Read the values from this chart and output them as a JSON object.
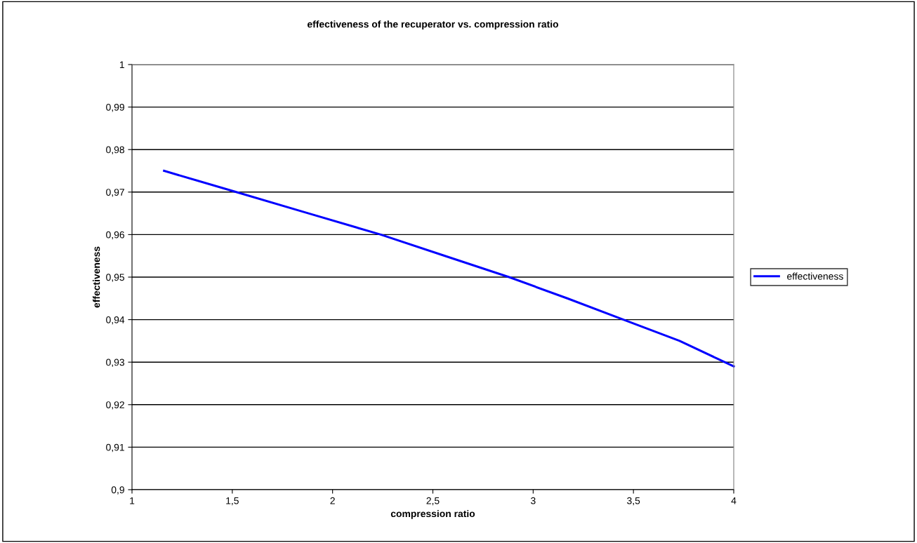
{
  "chart_data": {
    "type": "line",
    "title": "effectiveness of the recuperator vs. compression ratio",
    "xlabel": "compression ratio",
    "ylabel": "effectiveness",
    "x": [
      1.16,
      1.52,
      1.88,
      2.24,
      2.56,
      2.88,
      3.17,
      3.45,
      3.73,
      4.0
    ],
    "series": [
      {
        "name": "effectiveness",
        "color": "#0000ff",
        "values": [
          0.975,
          0.97,
          0.965,
          0.96,
          0.955,
          0.95,
          0.945,
          0.94,
          0.935,
          0.929
        ]
      }
    ],
    "xlim": [
      1,
      4
    ],
    "xticks": [
      1,
      {
        "value": 1.5,
        "label": "1,5"
      },
      2,
      {
        "value": 2.5,
        "label": "2,5"
      },
      3,
      {
        "value": 3.5,
        "label": "3,5"
      },
      4
    ],
    "ylim": [
      0.9,
      1
    ],
    "yticks": [
      {
        "value": 0.9,
        "label": "0,9"
      },
      {
        "value": 0.91,
        "label": "0,91"
      },
      {
        "value": 0.92,
        "label": "0,92"
      },
      {
        "value": 0.93,
        "label": "0,93"
      },
      {
        "value": 0.94,
        "label": "0,94"
      },
      {
        "value": 0.95,
        "label": "0,95"
      },
      {
        "value": 0.96,
        "label": "0,96"
      },
      {
        "value": 0.97,
        "label": "0,97"
      },
      {
        "value": 0.98,
        "label": "0,98"
      },
      {
        "value": 0.99,
        "label": "0,99"
      },
      {
        "value": 1,
        "label": "1"
      }
    ],
    "grid": "y",
    "legend": "right",
    "marker": "none",
    "line_style": "solid"
  }
}
